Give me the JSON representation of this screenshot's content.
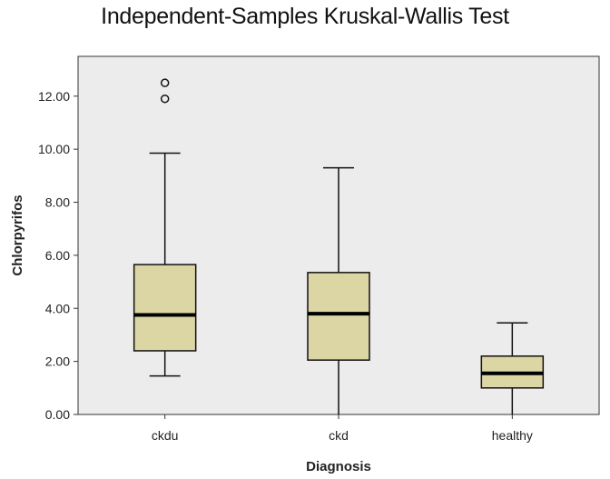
{
  "chart_data": {
    "type": "boxplot",
    "title": "Independent-Samples Kruskal-Wallis Test",
    "xlabel": "Diagnosis",
    "ylabel": "Chlorpyrifos",
    "ylim": [
      0,
      13.5
    ],
    "yticks": [
      "0.00",
      "2.00",
      "4.00",
      "6.00",
      "8.00",
      "10.00",
      "12.00"
    ],
    "ytick_values": [
      0,
      2,
      4,
      6,
      8,
      10,
      12
    ],
    "grid": false,
    "categories": [
      "ckdu",
      "ckd",
      "healthy"
    ],
    "boxes": [
      {
        "category": "ckdu",
        "whisker_low": 1.45,
        "q1": 2.4,
        "median": 3.75,
        "q3": 5.65,
        "whisker_high": 9.85,
        "outliers": [
          11.9,
          12.5
        ]
      },
      {
        "category": "ckd",
        "whisker_low": 0.0,
        "q1": 2.05,
        "median": 3.8,
        "q3": 5.35,
        "whisker_high": 9.3,
        "outliers": []
      },
      {
        "category": "healthy",
        "whisker_low": 0.0,
        "q1": 1.0,
        "median": 1.55,
        "q3": 2.2,
        "whisker_high": 3.45,
        "outliers": []
      }
    ],
    "colors": {
      "box_fill": "#dcd5a4",
      "plot_bg": "#ececec",
      "stroke": "#111111"
    }
  }
}
